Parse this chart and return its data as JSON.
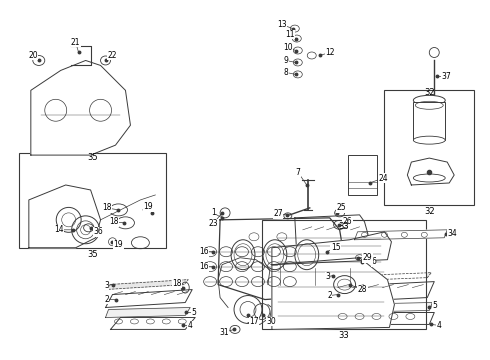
{
  "bg_color": "#ffffff",
  "line_color": "#3a3a3a",
  "label_color": "#000000",
  "border_color": "#555555",
  "fig_width": 4.9,
  "fig_height": 3.6,
  "dpi": 100
}
